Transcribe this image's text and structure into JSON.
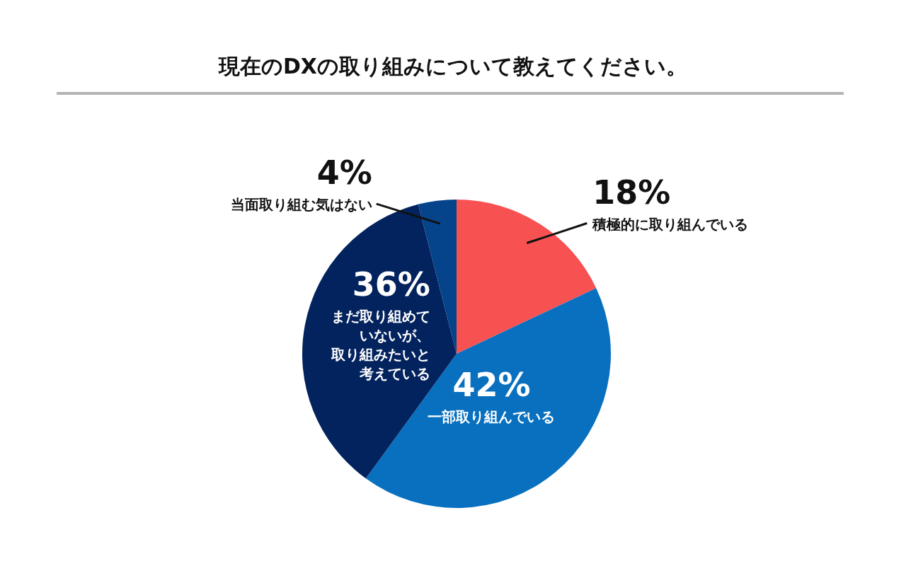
{
  "chart_data": {
    "type": "pie",
    "title": "現在のDXの取り組みについて教えてください。",
    "categories": [
      "積極的に取り組んでいる",
      "一部取り組んでいる",
      "まだ取り組めていないが、取り組みたいと考えている",
      "当面取り組む気はない"
    ],
    "values": [
      18,
      42,
      36,
      4
    ],
    "colors": [
      "#f85152",
      "#0870bf",
      "#03235e",
      "#05438a"
    ],
    "value_labels": [
      "18%",
      "42%",
      "36%",
      "4%"
    ]
  }
}
